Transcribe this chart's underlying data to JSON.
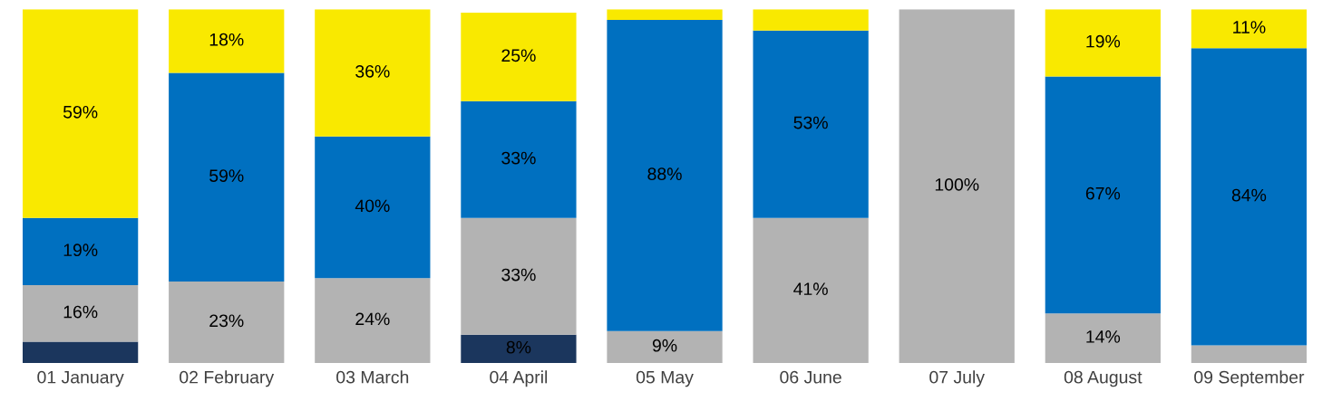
{
  "chart_data": {
    "type": "bar",
    "stacked": true,
    "tick_labels": "x",
    "grid": false,
    "categories": [
      "01 January",
      "02 February",
      "03 March",
      "04 April",
      "05 May",
      "06 June",
      "07 July",
      "08 August",
      "09 September"
    ],
    "ylim": [
      0,
      100
    ],
    "series": [
      {
        "color": "#1b365d",
        "values": [
          6,
          null,
          null,
          8,
          null,
          null,
          null,
          null,
          null
        ],
        "value_labels": [
          null,
          null,
          null,
          "8%",
          null,
          null,
          null,
          null,
          null
        ]
      },
      {
        "color": "#b3b3b3",
        "values": [
          16,
          23,
          24,
          33,
          9,
          41,
          100,
          14,
          5
        ],
        "value_labels": [
          "16%",
          "23%",
          "24%",
          "33%",
          "9%",
          "41%",
          "100%",
          "14%",
          null
        ]
      },
      {
        "color": "#0070c0",
        "values": [
          19,
          59,
          40,
          33,
          88,
          53,
          null,
          67,
          84
        ],
        "value_labels": [
          "19%",
          "59%",
          "40%",
          "33%",
          "88%",
          "53%",
          null,
          "67%",
          "84%"
        ]
      },
      {
        "color": "#f9e900",
        "values": [
          59,
          18,
          36,
          25,
          3,
          6,
          null,
          19,
          11
        ],
        "value_labels": [
          "59%",
          "18%",
          "36%",
          "25%",
          null,
          null,
          null,
          "19%",
          "11%"
        ]
      }
    ]
  }
}
